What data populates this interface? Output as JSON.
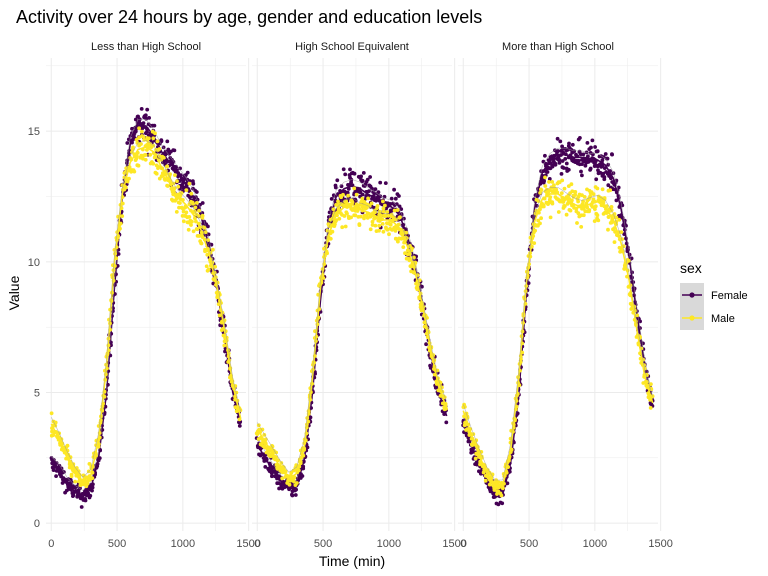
{
  "chart_data": {
    "type": "scatter",
    "title": "Activity over 24 hours by age, gender and education levels",
    "xlabel": "Time (min)",
    "ylabel": "Value",
    "xlim": [
      -40,
      1480
    ],
    "ylim": [
      -0.3,
      17.8
    ],
    "xticks": [
      0,
      500,
      1000,
      1500
    ],
    "xtick_labels": [
      [
        "0",
        "500",
        "1000",
        "1500"
      ],
      [
        "0",
        "500",
        "1000",
        "1500"
      ],
      [
        "0",
        "500",
        "1000",
        "1500"
      ]
    ],
    "yticks": [
      0,
      5,
      10,
      15
    ],
    "yticks_labels": [
      "0",
      "5",
      "10",
      "15"
    ],
    "grid": true,
    "legend": {
      "title": "sex",
      "position": "right",
      "entries": [
        {
          "label": "Female",
          "color": "#440154"
        },
        {
          "label": "Male",
          "color": "#FDE725"
        }
      ]
    },
    "panels": [
      {
        "label": "Less than High School",
        "series": [
          {
            "name": "Female",
            "color": "#440154",
            "x": [
              0,
              60,
              120,
              180,
              240,
              300,
              360,
              420,
              480,
              540,
              600,
              660,
              720,
              780,
              840,
              900,
              960,
              1020,
              1080,
              1140,
              1200,
              1260,
              1320,
              1380,
              1440
            ],
            "y": [
              2.3,
              2.0,
              1.5,
              1.2,
              1.0,
              1.3,
              2.5,
              5.0,
              9.0,
              12.5,
              14.5,
              15.2,
              15.2,
              14.8,
              14.2,
              13.8,
              13.4,
              13.0,
              12.5,
              11.7,
              10.6,
              9.0,
              7.0,
              5.0,
              3.8
            ],
            "spread": 0.9
          },
          {
            "name": "Male",
            "color": "#FDE725",
            "x": [
              0,
              60,
              120,
              180,
              240,
              300,
              360,
              420,
              480,
              540,
              600,
              660,
              720,
              780,
              840,
              900,
              960,
              1020,
              1080,
              1140,
              1200,
              1260,
              1320,
              1380,
              1440
            ],
            "y": [
              3.8,
              3.2,
              2.5,
              1.9,
              1.5,
              1.8,
              3.2,
              6.0,
              10.0,
              12.6,
              13.8,
              14.3,
              14.4,
              14.2,
              13.6,
              13.0,
              12.5,
              12.2,
              11.8,
              11.2,
              10.3,
              9.0,
              7.3,
              5.3,
              4.0
            ],
            "spread": 0.9
          }
        ]
      },
      {
        "label": "High School Equivalent",
        "series": [
          {
            "name": "Female",
            "color": "#440154",
            "x": [
              0,
              60,
              120,
              180,
              240,
              300,
              360,
              420,
              480,
              540,
              600,
              660,
              720,
              780,
              840,
              900,
              960,
              1020,
              1080,
              1140,
              1200,
              1260,
              1320,
              1380,
              1440
            ],
            "y": [
              3.0,
              2.5,
              2.0,
              1.6,
              1.3,
              1.4,
              2.5,
              5.0,
              8.5,
              11.3,
              12.5,
              12.8,
              12.9,
              12.8,
              12.6,
              12.4,
              12.2,
              12.1,
              11.8,
              11.0,
              9.8,
              8.2,
              6.5,
              5.0,
              4.1
            ],
            "spread": 0.9
          },
          {
            "name": "Male",
            "color": "#FDE725",
            "x": [
              0,
              60,
              120,
              180,
              240,
              300,
              360,
              420,
              480,
              540,
              600,
              660,
              720,
              780,
              840,
              900,
              960,
              1020,
              1080,
              1140,
              1200,
              1260,
              1320,
              1380,
              1440
            ],
            "y": [
              3.6,
              3.1,
              2.6,
              2.1,
              1.7,
              1.9,
              3.0,
              5.6,
              9.0,
              11.0,
              11.8,
              12.1,
              12.2,
              12.0,
              11.9,
              11.7,
              11.6,
              11.6,
              11.3,
              10.6,
              9.6,
              8.2,
              6.6,
              5.2,
              4.4
            ],
            "spread": 0.8
          }
        ]
      },
      {
        "label": "More than High School",
        "series": [
          {
            "name": "Female",
            "color": "#440154",
            "x": [
              0,
              60,
              120,
              180,
              240,
              300,
              360,
              420,
              480,
              540,
              600,
              660,
              720,
              780,
              840,
              900,
              960,
              1020,
              1080,
              1140,
              1200,
              1260,
              1320,
              1380,
              1440
            ],
            "y": [
              3.8,
              3.0,
              2.3,
              1.6,
              1.1,
              1.1,
              2.3,
              4.8,
              8.8,
              12.0,
              13.4,
              13.9,
              14.1,
              14.1,
              14.0,
              14.0,
              13.9,
              13.9,
              13.7,
              13.2,
              12.0,
              10.2,
              8.0,
              6.0,
              4.5
            ],
            "spread": 0.8
          },
          {
            "name": "Male",
            "color": "#FDE725",
            "x": [
              0,
              60,
              120,
              180,
              240,
              300,
              360,
              420,
              480,
              540,
              600,
              660,
              720,
              780,
              840,
              900,
              960,
              1020,
              1080,
              1140,
              1200,
              1260,
              1320,
              1380,
              1440
            ],
            "y": [
              4.3,
              3.4,
              2.6,
              1.9,
              1.4,
              1.4,
              2.8,
              5.5,
              9.2,
              11.5,
              12.4,
              12.6,
              12.6,
              12.4,
              12.2,
              12.1,
              12.2,
              12.3,
              12.1,
              11.6,
              10.7,
              9.3,
              7.4,
              5.6,
              4.6
            ],
            "spread": 0.9
          }
        ]
      }
    ]
  }
}
